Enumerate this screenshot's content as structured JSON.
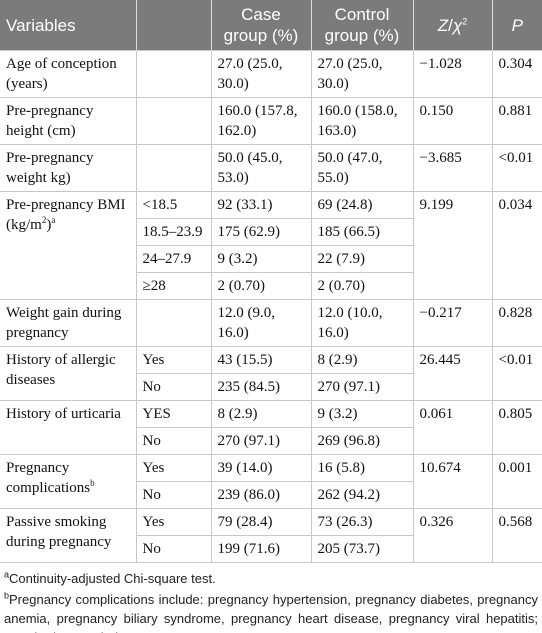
{
  "table": {
    "header": [
      "Variables",
      "Case group (%)",
      "Control group (%)",
      [
        {
          "i": "Z"
        },
        "/",
        {
          "i": "χ"
        },
        {
          "sup": "2"
        }
      ],
      [
        {
          "i": "P"
        }
      ]
    ],
    "groups": [
      {
        "variable": "Age of conception (years)",
        "stat": "−1.028",
        "p": "0.304",
        "rows": [
          {
            "case": "27.0 (25.0, 30.0)",
            "control": "27.0 (25.0, 30.0)"
          }
        ]
      },
      {
        "variable": "Pre-pregnancy height (cm)",
        "stat": "0.150",
        "p": "0.881",
        "rows": [
          {
            "case": "160.0 (157.8, 162.0)",
            "control": "160.0 (158.0, 163.0)"
          }
        ]
      },
      {
        "variable": "Pre-pregnancy weight kg)",
        "stat": "−3.685",
        "p": "<0.01",
        "rows": [
          {
            "case": "50.0 (45.0, 53.0)",
            "control": "50.0 (47.0, 55.0)"
          }
        ]
      },
      {
        "variable": [
          "Pre-pregnancy BMI (kg/m",
          {
            "sup": "2"
          },
          ")",
          {
            "sup": "a"
          }
        ],
        "stat": "9.199",
        "p": "0.034",
        "rows": [
          {
            "level": "<18.5",
            "case": "92 (33.1)",
            "control": "69 (24.8)"
          },
          {
            "level": "18.5–23.9",
            "case": "175 (62.9)",
            "control": "185 (66.5)"
          },
          {
            "level": "24–27.9",
            "case": "9 (3.2)",
            "control": "22 (7.9)"
          },
          {
            "level": "≥28",
            "case": "2 (0.70)",
            "control": "2 (0.70)"
          }
        ]
      },
      {
        "variable": "Weight gain during pregnancy",
        "stat": "−0.217",
        "p": "0.828",
        "rows": [
          {
            "case": "12.0 (9.0, 16.0)",
            "control": "12.0 (10.0, 16.0)"
          }
        ]
      },
      {
        "variable": "History of allergic diseases",
        "stat": "26.445",
        "p": "<0.01",
        "rows": [
          {
            "level": "Yes",
            "case": "43 (15.5)",
            "control": "8 (2.9)"
          },
          {
            "level": "No",
            "case": "235 (84.5)",
            "control": "270 (97.1)"
          }
        ]
      },
      {
        "variable": "History of urticaria",
        "stat": "0.061",
        "p": "0.805",
        "rows": [
          {
            "level": "YES",
            "case": "8 (2.9)",
            "control": "9 (3.2)"
          },
          {
            "level": "No",
            "case": "270 (97.1)",
            "control": "269 (96.8)"
          }
        ]
      },
      {
        "variable": [
          "Pregnancy complications",
          {
            "sup": "b"
          }
        ],
        "stat": "10.674",
        "p": "0.001",
        "rows": [
          {
            "level": "Yes",
            "case": "39 (14.0)",
            "control": "16 (5.8)"
          },
          {
            "level": "No",
            "case": "239 (86.0)",
            "control": "262 (94.2)"
          }
        ]
      },
      {
        "variable": "Passive smoking during pregnancy",
        "stat": "0.326",
        "p": "0.568",
        "rows": [
          {
            "level": "Yes",
            "case": "79 (28.4)",
            "control": "73 (26.3)"
          },
          {
            "level": "No",
            "case": "199 (71.6)",
            "control": "205 (73.7)"
          }
        ]
      }
    ],
    "notes": [
      [
        {
          "sup": "a"
        },
        "Continuity-adjusted Chi-square test."
      ],
      [
        {
          "sup": "b"
        },
        "Pregnancy complications include: pregnancy hypertension, pregnancy diabetes, pregnancy anemia, pregnancy biliary syndrome, pregnancy heart disease, pregnancy viral hepatitis; BMI, body mass index."
      ]
    ]
  }
}
